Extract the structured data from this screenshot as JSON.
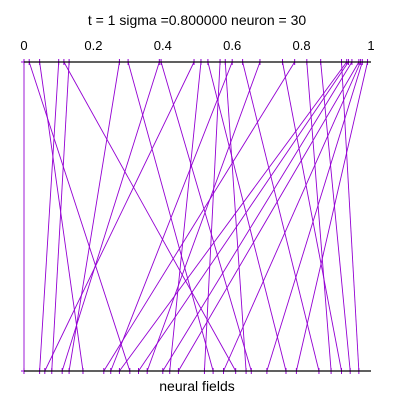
{
  "chart_data": {
    "type": "line",
    "title": "t = 1 sigma =0.800000 neuron = 30",
    "xlabel": "neural fields",
    "ylabel": "",
    "xlim": [
      0,
      1
    ],
    "x_ticks": [
      "0",
      "0.2",
      "0.4",
      "0.6",
      "0.8",
      "1"
    ],
    "x_tick_values": [
      0,
      0.2,
      0.4,
      0.6,
      0.8,
      1
    ],
    "grid": false,
    "legend": "none",
    "series": [
      {
        "values_top": [
          0.0,
          0.015,
          0.045,
          0.1,
          0.115,
          0.13,
          0.275,
          0.3,
          0.39,
          0.395,
          0.49,
          0.51,
          0.53,
          0.565,
          0.58,
          0.6,
          0.63,
          0.68,
          0.745,
          0.78,
          0.815,
          0.855,
          0.915,
          0.93,
          0.935,
          0.945,
          0.965,
          0.97,
          0.975,
          0.99
        ],
        "values_bottom": [
          0.0,
          0.045,
          0.06,
          0.08,
          0.11,
          0.13,
          0.17,
          0.23,
          0.25,
          0.275,
          0.305,
          0.33,
          0.355,
          0.4,
          0.42,
          0.445,
          0.52,
          0.545,
          0.575,
          0.61,
          0.64,
          0.655,
          0.7,
          0.755,
          0.785,
          0.85,
          0.885,
          0.915,
          0.94,
          0.965
        ],
        "links": [
          [
            0,
            0
          ],
          [
            1,
            10
          ],
          [
            2,
            6
          ],
          [
            3,
            1
          ],
          [
            4,
            19
          ],
          [
            5,
            3
          ],
          [
            6,
            5
          ],
          [
            7,
            17
          ],
          [
            8,
            4
          ],
          [
            9,
            21
          ],
          [
            10,
            2
          ],
          [
            11,
            14
          ],
          [
            12,
            23
          ],
          [
            13,
            16
          ],
          [
            14,
            20
          ],
          [
            15,
            8
          ],
          [
            16,
            25
          ],
          [
            17,
            12
          ],
          [
            18,
            27
          ],
          [
            19,
            7
          ],
          [
            20,
            26
          ],
          [
            21,
            28
          ],
          [
            22,
            29
          ],
          [
            23,
            9
          ],
          [
            24,
            11
          ],
          [
            25,
            13
          ],
          [
            26,
            15
          ],
          [
            27,
            18
          ],
          [
            28,
            22
          ],
          [
            29,
            24
          ]
        ]
      }
    ],
    "colors": {
      "lines": "#9400d3",
      "axis": "#000000",
      "ticks": "#9400d3",
      "background": "#ffffff"
    }
  }
}
